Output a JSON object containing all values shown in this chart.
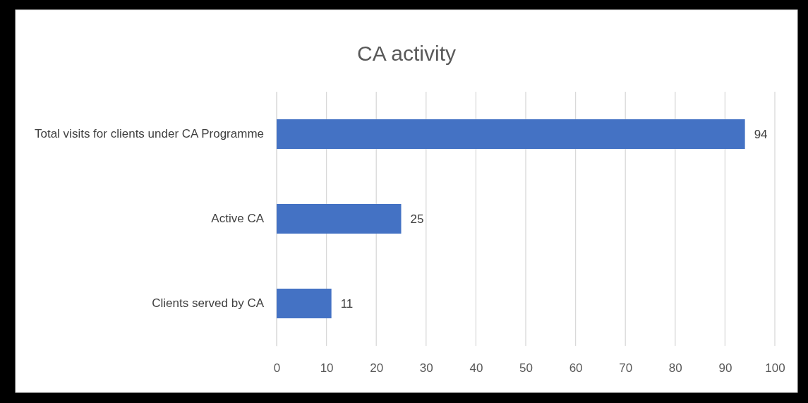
{
  "chart_data": {
    "type": "bar",
    "orientation": "horizontal",
    "title": "CA activity",
    "categories": [
      "Total visits for clients under CA Programme",
      "Active CA",
      "Clients served by CA"
    ],
    "values": [
      94,
      25,
      11
    ],
    "color": "#4472c4",
    "xlim": [
      0,
      100
    ],
    "xticks": [
      0,
      10,
      20,
      30,
      40,
      50,
      60,
      70,
      80,
      90,
      100
    ],
    "grid": "x",
    "data_labels": true
  }
}
